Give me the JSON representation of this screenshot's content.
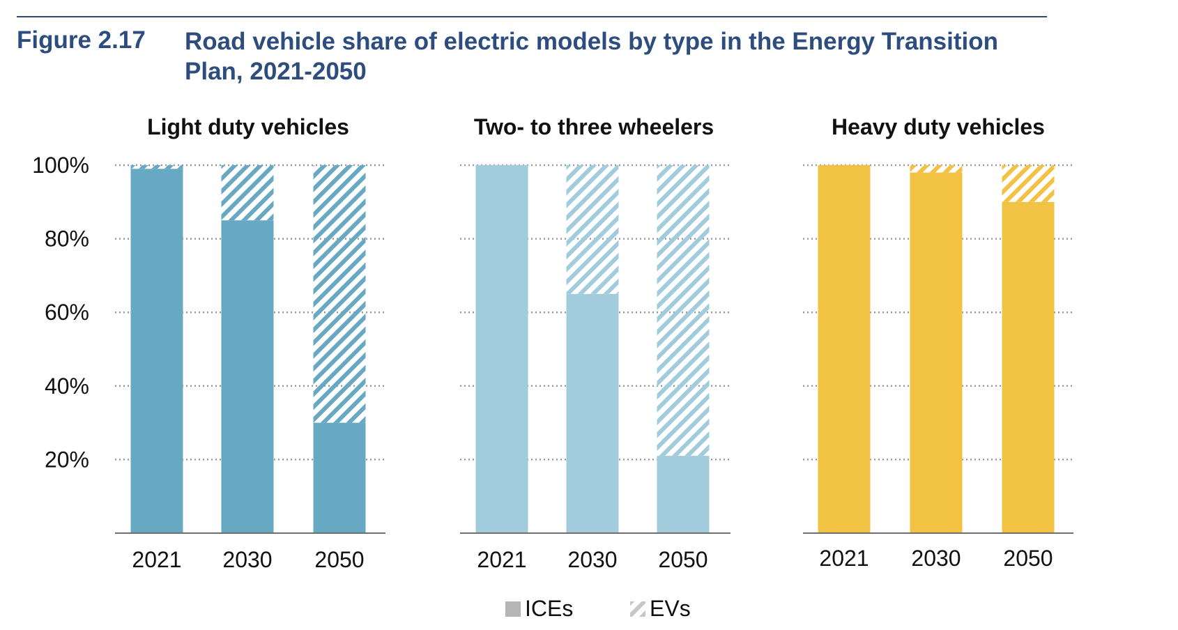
{
  "figure": {
    "number": "Figure 2.17",
    "title": "Road vehicle share of electric models by type in the Energy Transition Plan, 2021-2050"
  },
  "chart_data": [
    {
      "type": "bar",
      "stacked": true,
      "title": "Light duty vehicles",
      "categories": [
        "2021",
        "2030",
        "2050"
      ],
      "series": [
        {
          "name": "ICEs",
          "values": [
            99,
            85,
            30
          ]
        },
        {
          "name": "EVs",
          "values": [
            1,
            15,
            70
          ]
        }
      ],
      "yticks": [
        "20%",
        "40%",
        "60%",
        "80%",
        "100%"
      ],
      "ylim": [
        0,
        100
      ],
      "grid": true,
      "color": "#67a9c2"
    },
    {
      "type": "bar",
      "stacked": true,
      "title": "Two- to three wheelers",
      "categories": [
        "2021",
        "2030",
        "2050"
      ],
      "series": [
        {
          "name": "ICEs",
          "values": [
            100,
            65,
            21
          ]
        },
        {
          "name": "EVs",
          "values": [
            0,
            35,
            79
          ]
        }
      ],
      "ylim": [
        0,
        100
      ],
      "grid": true,
      "color": "#a2cbdb"
    },
    {
      "type": "bar",
      "stacked": true,
      "title": "Heavy duty vehicles",
      "categories": [
        "2021",
        "2030",
        "2050"
      ],
      "series": [
        {
          "name": "ICEs",
          "values": [
            100,
            98,
            90
          ]
        },
        {
          "name": "EVs",
          "values": [
            0,
            2,
            10
          ]
        }
      ],
      "ylim": [
        0,
        100
      ],
      "grid": true,
      "color": "#f2c244"
    }
  ],
  "legend": {
    "placement": "bottom-center",
    "items": [
      {
        "label": "ICEs",
        "style": "solid",
        "color": "#b5b5b5"
      },
      {
        "label": "EVs",
        "style": "hatched",
        "color": "#c7c7c7"
      }
    ]
  }
}
